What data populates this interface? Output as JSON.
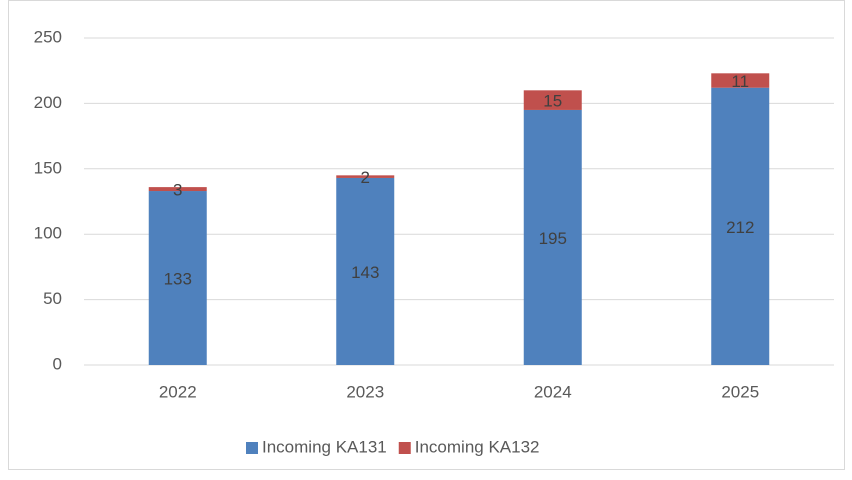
{
  "chart_data": {
    "type": "stacked_bar",
    "categories": [
      "2022",
      "2023",
      "2024",
      "2025"
    ],
    "series": [
      {
        "name": "Incoming KA131",
        "color": "#4f81bd",
        "values": [
          133,
          143,
          195,
          212
        ]
      },
      {
        "name": "Incoming KA132",
        "color": "#c0504d",
        "values": [
          3,
          2,
          15,
          11
        ]
      }
    ],
    "ylim": [
      0,
      250
    ],
    "yticks": [
      0,
      50,
      100,
      150,
      200,
      250
    ],
    "grid": true,
    "legend": "bottom"
  }
}
